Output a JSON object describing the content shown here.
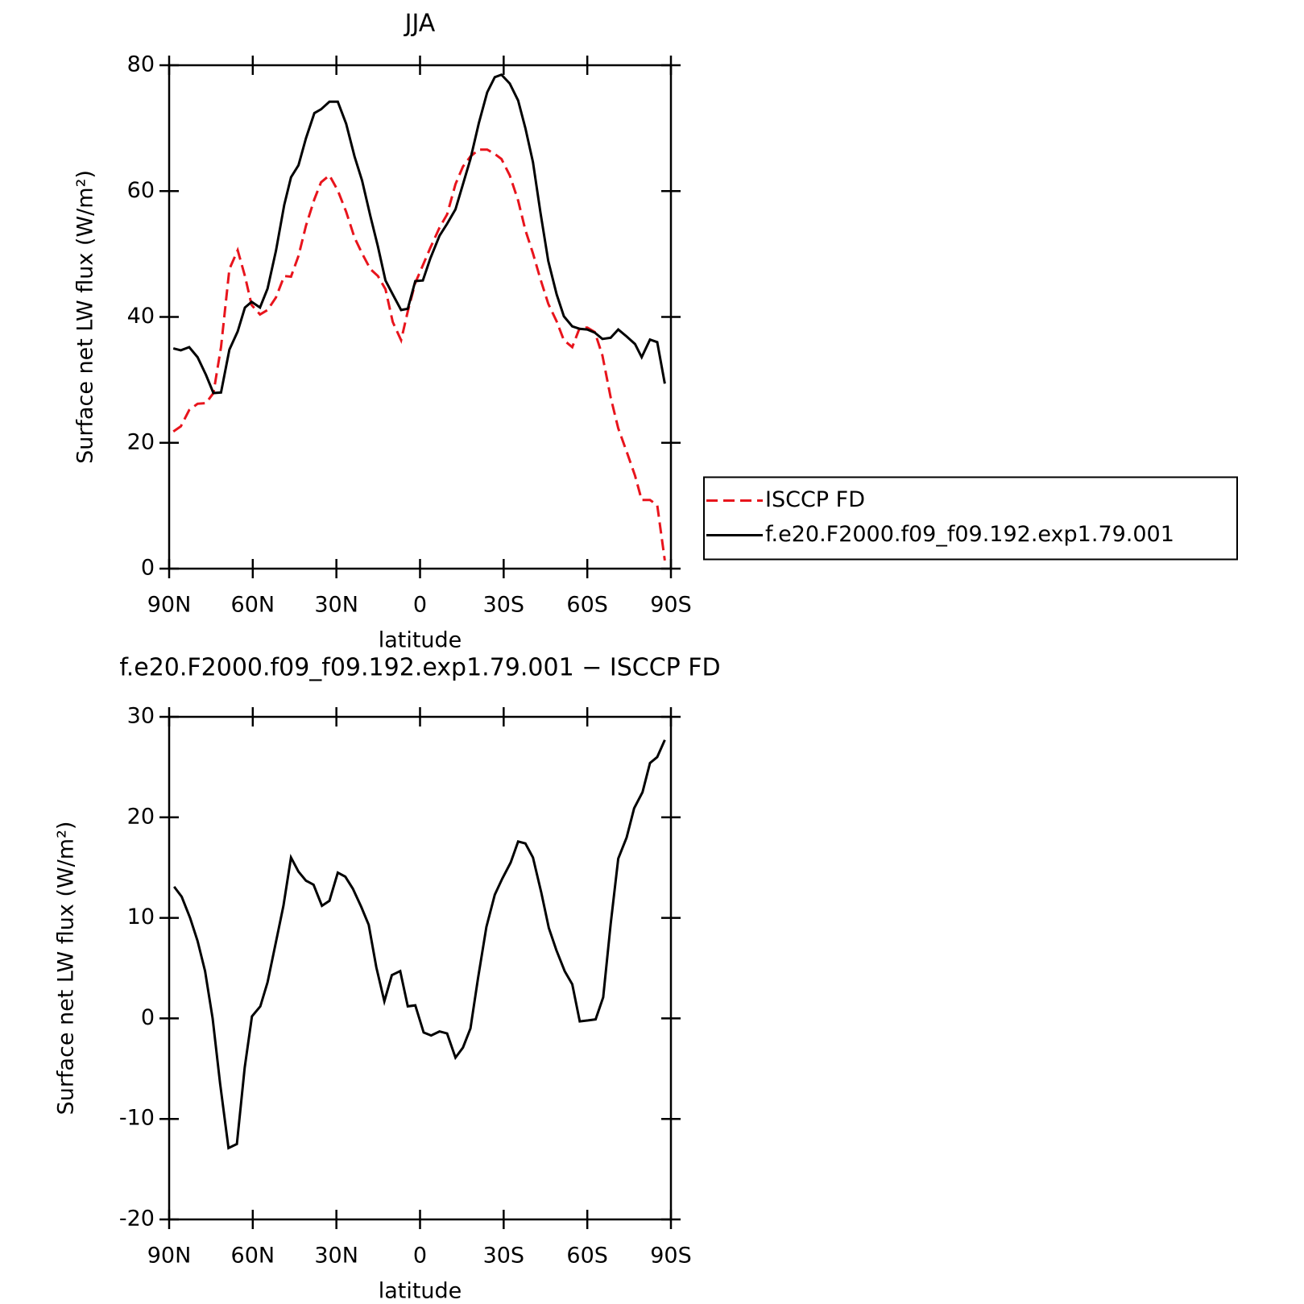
{
  "chart_data": [
    {
      "type": "line",
      "title": "JJA",
      "xlabel": "latitude",
      "ylabel": "Surface net LW flux (W/m²)",
      "x": [
        88.5,
        85.8,
        82.8,
        79.8,
        76.8,
        74.1,
        71.4,
        68.4,
        65.4,
        62.8,
        60.4,
        57.4,
        54.7,
        51.7,
        48.7,
        46.3,
        43.6,
        40.9,
        37.9,
        35.5,
        32.5,
        29.5,
        26.5,
        23.5,
        20.8,
        17.8,
        15.1,
        12.4,
        9.8,
        6.8,
        4.4,
        1.7,
        -1.0,
        -3.7,
        -7.0,
        -9.7,
        -12.7,
        -15.4,
        -18.1,
        -21.1,
        -24.1,
        -26.8,
        -29.2,
        -32.2,
        -35.2,
        -37.8,
        -40.5,
        -43.2,
        -46.0,
        -49.0,
        -51.6,
        -54.6,
        -57.3,
        -60.0,
        -62.7,
        -65.4,
        -68.4,
        -71.1,
        -74.1,
        -77.1,
        -79.5,
        -82.5,
        -85.1,
        -87.8
      ],
      "series": [
        {
          "name": "ISCCP FD",
          "color": "#e8141c",
          "style": "dashed",
          "values": [
            21.8,
            22.6,
            25.2,
            26.2,
            26.3,
            27.9,
            35.2,
            47.6,
            50.6,
            46.5,
            41.9,
            40.4,
            41.1,
            43.1,
            46.5,
            46.4,
            49.7,
            54.5,
            58.7,
            61.4,
            62.5,
            60.1,
            56.7,
            52.6,
            50.1,
            47.6,
            46.5,
            44.4,
            39.2,
            36.3,
            40.9,
            45.4,
            48.2,
            51.0,
            54.2,
            56.3,
            61.1,
            63.9,
            65.5,
            66.6,
            66.6,
            65.9,
            65.1,
            62.5,
            58.5,
            53.8,
            50.1,
            46.0,
            42.1,
            39.3,
            36.3,
            35.2,
            38.3,
            38.3,
            37.6,
            33.9,
            27.2,
            22.3,
            18.6,
            14.8,
            10.9,
            10.9,
            10.1,
            1.3
          ]
        },
        {
          "name": "f.e20.F2000.f09_f09.192.exp1.79.001",
          "color": "#000000",
          "style": "solid",
          "values": [
            35.0,
            34.7,
            35.2,
            33.6,
            30.8,
            27.9,
            28.0,
            34.8,
            37.7,
            41.5,
            42.4,
            41.5,
            44.5,
            50.5,
            57.8,
            62.2,
            64.1,
            68.4,
            72.4,
            73.0,
            74.2,
            74.2,
            70.7,
            65.5,
            61.7,
            56.0,
            51.2,
            45.8,
            43.6,
            41.1,
            41.3,
            45.7,
            45.8,
            49.3,
            52.9,
            54.8,
            57.1,
            61.1,
            65.1,
            70.8,
            75.7,
            78.1,
            78.5,
            77.1,
            74.4,
            70.0,
            64.6,
            56.6,
            48.9,
            43.6,
            40.1,
            38.5,
            38.1,
            38.0,
            37.5,
            36.5,
            36.7,
            38.0,
            36.9,
            35.7,
            33.6,
            36.4,
            36.0,
            29.4
          ]
        }
      ],
      "xlim": [
        90,
        -90
      ],
      "xticks": [
        {
          "value": 90,
          "label": "90N"
        },
        {
          "value": 60,
          "label": "60N"
        },
        {
          "value": 30,
          "label": "30N"
        },
        0,
        {
          "value": -30,
          "label": "30S"
        },
        {
          "value": -60,
          "label": "60S"
        },
        {
          "value": -90,
          "label": "90S"
        }
      ],
      "ylim": [
        0,
        80
      ],
      "yticks": [
        0,
        20,
        40,
        60,
        80
      ],
      "legend": "right"
    },
    {
      "type": "line",
      "title": "f.e20.F2000.f09_f09.192.exp1.79.001 − ISCCP FD",
      "xlabel": "latitude",
      "ylabel": "Surface net LW flux (W/m²)",
      "x": [
        88.2,
        85.5,
        82.5,
        79.8,
        77.1,
        74.4,
        71.7,
        68.7,
        65.7,
        62.9,
        60.3,
        57.3,
        54.7,
        51.7,
        49.0,
        46.3,
        43.6,
        40.9,
        38.2,
        35.2,
        32.5,
        29.5,
        26.8,
        24.1,
        21.1,
        18.4,
        15.7,
        12.8,
        10.1,
        7.1,
        4.4,
        1.7,
        -1.3,
        -4.0,
        -7.0,
        -9.7,
        -12.7,
        -15.4,
        -18.1,
        -20.8,
        -23.8,
        -26.8,
        -29.5,
        -32.5,
        -35.2,
        -37.8,
        -40.5,
        -43.5,
        -46.2,
        -48.9,
        -51.9,
        -54.6,
        -57.3,
        -60.3,
        -63.0,
        -65.7,
        -68.4,
        -71.1,
        -74.1,
        -76.8,
        -79.8,
        -82.5,
        -85.1,
        -87.8
      ],
      "series": [
        {
          "color": "#000000",
          "style": "solid",
          "values": [
            13.1,
            12.1,
            10.0,
            7.7,
            4.7,
            0.0,
            -6.5,
            -12.9,
            -12.5,
            -4.9,
            0.2,
            1.2,
            3.6,
            7.6,
            11.2,
            16.0,
            14.6,
            13.7,
            13.3,
            11.2,
            11.7,
            14.5,
            14.1,
            12.9,
            11.1,
            9.3,
            5.1,
            1.7,
            4.3,
            4.7,
            1.2,
            1.3,
            -1.4,
            -1.7,
            -1.3,
            -1.5,
            -3.9,
            -2.9,
            -1.0,
            4.0,
            9.1,
            12.3,
            13.9,
            15.5,
            17.6,
            17.4,
            16.0,
            12.5,
            9.0,
            6.8,
            4.7,
            3.4,
            -0.3,
            -0.2,
            -0.1,
            2.1,
            9.4,
            15.9,
            18.0,
            20.9,
            22.5,
            25.4,
            26.0,
            27.7
          ]
        }
      ],
      "xlim": [
        90,
        -90
      ],
      "xticks": [
        {
          "value": 90,
          "label": "90N"
        },
        {
          "value": 60,
          "label": "60N"
        },
        {
          "value": 30,
          "label": "30N"
        },
        0,
        {
          "value": -30,
          "label": "30S"
        },
        {
          "value": -60,
          "label": "60S"
        },
        {
          "value": -90,
          "label": "90S"
        }
      ],
      "ylim": [
        -20,
        30
      ],
      "yticks": [
        -20,
        -10,
        0,
        10,
        20,
        30
      ]
    }
  ]
}
